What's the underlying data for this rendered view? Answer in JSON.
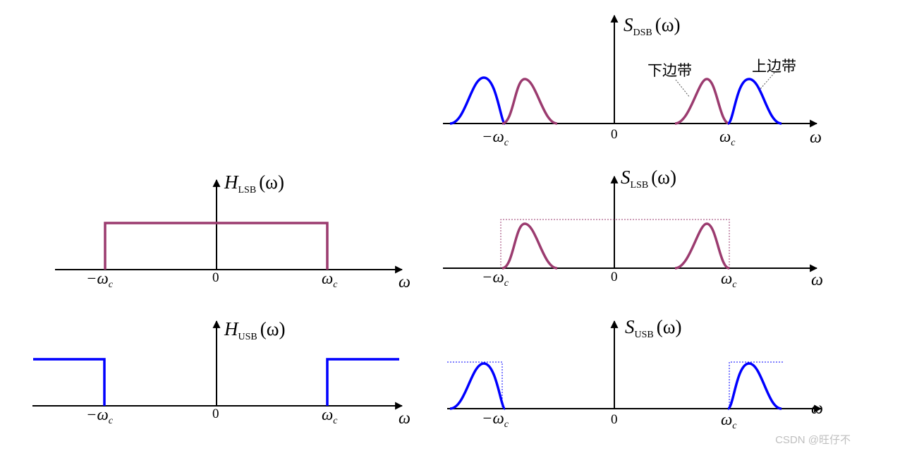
{
  "panels": {
    "s_dsb": {
      "sym": "S",
      "sub": "DSB",
      "arg": "(ω)"
    },
    "h_lsb": {
      "sym": "H",
      "sub": "LSB",
      "arg": "(ω)"
    },
    "s_lsb": {
      "sym": "S",
      "sub": "LSB",
      "arg": "(ω)"
    },
    "h_usb": {
      "sym": "H",
      "sub": "USB",
      "arg": "(ω)"
    },
    "s_usb": {
      "sym": "S",
      "sub": "USB",
      "arg": "(ω)"
    }
  },
  "axis": {
    "neg_wc": "−ω",
    "wc": "ω",
    "c_sub": "c",
    "zero": "0",
    "omega": "ω"
  },
  "annotations": {
    "lower_sideband": "下边带",
    "upper_sideband": "上边带"
  },
  "watermark": "CSDN @旺仔不",
  "colors": {
    "axis": "#000000",
    "lower_sideband": "#9b3b6f",
    "upper_sideband": "#0000ff"
  }
}
